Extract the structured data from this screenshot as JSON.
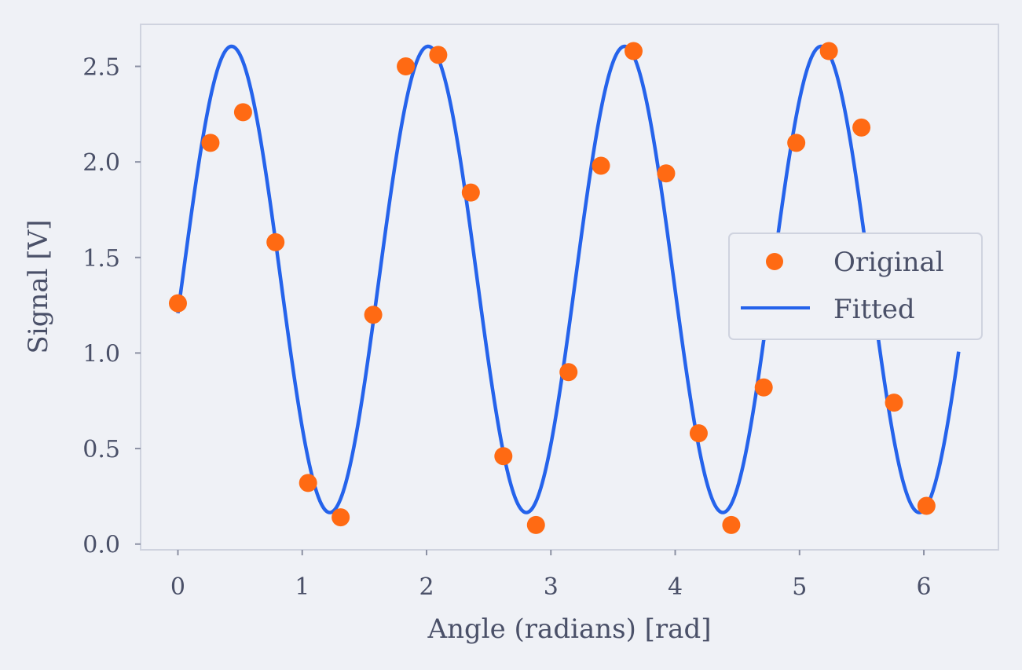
{
  "chart_data": {
    "type": "scatter",
    "title": "",
    "xlabel": "Angle (radians) [rad]",
    "ylabel": "Signal [V]",
    "xlim": [
      -0.3,
      6.6
    ],
    "ylim": [
      -0.03,
      2.72
    ],
    "xticks": [
      0,
      1,
      2,
      3,
      4,
      5,
      6
    ],
    "xtick_labels": [
      "0",
      "1",
      "2",
      "3",
      "4",
      "5",
      "6"
    ],
    "yticks": [
      0.0,
      0.5,
      1.0,
      1.5,
      2.0,
      2.5
    ],
    "ytick_labels": [
      "0.0",
      "0.5",
      "1.0",
      "1.5",
      "2.0",
      "2.5"
    ],
    "grid": false,
    "legend_position": "center-right",
    "series": [
      {
        "name": "Original",
        "kind": "scatter",
        "color": "#ff6a13",
        "x": [
          0.0,
          0.262,
          0.524,
          0.785,
          1.047,
          1.309,
          1.571,
          1.833,
          2.094,
          2.356,
          2.618,
          2.88,
          3.142,
          3.403,
          3.665,
          3.927,
          4.189,
          4.451,
          4.712,
          4.974,
          5.236,
          5.498,
          5.76,
          6.021
        ],
        "y": [
          1.26,
          2.1,
          2.26,
          1.58,
          0.32,
          0.14,
          1.2,
          2.5,
          2.56,
          1.84,
          0.46,
          0.1,
          0.9,
          1.98,
          2.58,
          1.94,
          0.58,
          0.1,
          0.82,
          2.1,
          2.58,
          2.18,
          0.74,
          0.2
        ]
      },
      {
        "name": "Fitted",
        "kind": "line",
        "color": "#2563eb",
        "model": {
          "form": "offset + amplitude * sin(frequency * x + phase)",
          "offset": 1.385,
          "amplitude": 1.22,
          "frequency": 3.975,
          "phase": -0.145,
          "x_range": [
            0,
            6.28
          ]
        }
      }
    ]
  }
}
